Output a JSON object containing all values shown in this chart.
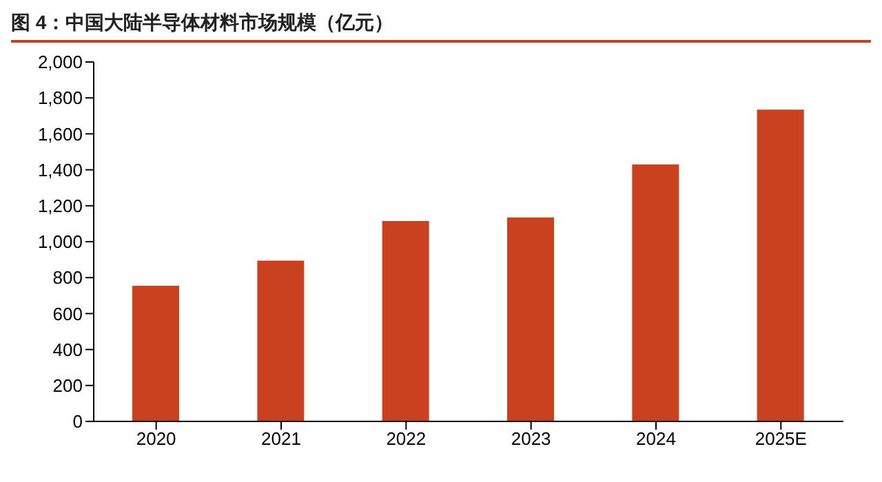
{
  "chart_data": {
    "type": "bar",
    "title": "图 4：中国大陆半导体材料市场规模（亿元）",
    "categories": [
      "2020",
      "2021",
      "2022",
      "2023",
      "2024",
      "2025E"
    ],
    "values": [
      755,
      895,
      1115,
      1135,
      1430,
      1735
    ],
    "color": "#c9411e",
    "ylim": [
      0,
      2000
    ],
    "yticks": [
      {
        "value": 0,
        "label": "0"
      },
      {
        "value": 200,
        "label": "200"
      },
      {
        "value": 400,
        "label": "400"
      },
      {
        "value": 600,
        "label": "600"
      },
      {
        "value": 800,
        "label": "800"
      },
      {
        "value": 1000,
        "label": "1,000"
      },
      {
        "value": 1200,
        "label": "1,200"
      },
      {
        "value": 1400,
        "label": "1,400"
      },
      {
        "value": 1600,
        "label": "1,600"
      },
      {
        "value": 1800,
        "label": "1,800"
      },
      {
        "value": 2000,
        "label": "2,000"
      }
    ],
    "grid": false,
    "legend": false
  }
}
